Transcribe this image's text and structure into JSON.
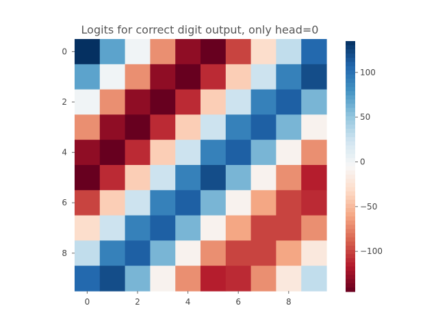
{
  "chart_data": {
    "type": "heatmap",
    "title": "Logits for correct digit output, only head=0",
    "xlabel": "",
    "ylabel": "",
    "x_ticks": [
      "0",
      "2",
      "4",
      "6",
      "8"
    ],
    "y_ticks": [
      "0",
      "2",
      "4",
      "6",
      "8"
    ],
    "rows": 10,
    "cols": 10,
    "colormap": "RdBu",
    "colorbar_range": [
      -145,
      135
    ],
    "colorbar_ticks": [
      {
        "value": 100,
        "label": "100"
      },
      {
        "value": 50,
        "label": "50"
      },
      {
        "value": 0,
        "label": "0"
      },
      {
        "value": -50,
        "label": "−50"
      },
      {
        "value": -100,
        "label": "−100"
      }
    ],
    "values": [
      [
        135,
        70,
        0,
        -70,
        -130,
        -145,
        -100,
        -30,
        30,
        105
      ],
      [
        70,
        0,
        -70,
        -130,
        -145,
        -110,
        -40,
        25,
        90,
        120
      ],
      [
        0,
        -70,
        -130,
        -145,
        -110,
        -40,
        25,
        90,
        110,
        60
      ],
      [
        -70,
        -130,
        -145,
        -110,
        -40,
        25,
        90,
        110,
        60,
        -10
      ],
      [
        -130,
        -145,
        -110,
        -40,
        25,
        90,
        110,
        60,
        -10,
        -70
      ],
      [
        -145,
        -110,
        -40,
        25,
        90,
        120,
        60,
        -10,
        -70,
        -115
      ],
      [
        -100,
        -40,
        25,
        90,
        110,
        60,
        -10,
        -60,
        -100,
        -110
      ],
      [
        -30,
        25,
        90,
        110,
        60,
        -10,
        -60,
        -100,
        -100,
        -70
      ],
      [
        30,
        90,
        110,
        60,
        -10,
        -70,
        -100,
        -100,
        -60,
        -20
      ],
      [
        105,
        120,
        60,
        -10,
        -70,
        -115,
        -110,
        -70,
        -20,
        30
      ]
    ]
  }
}
